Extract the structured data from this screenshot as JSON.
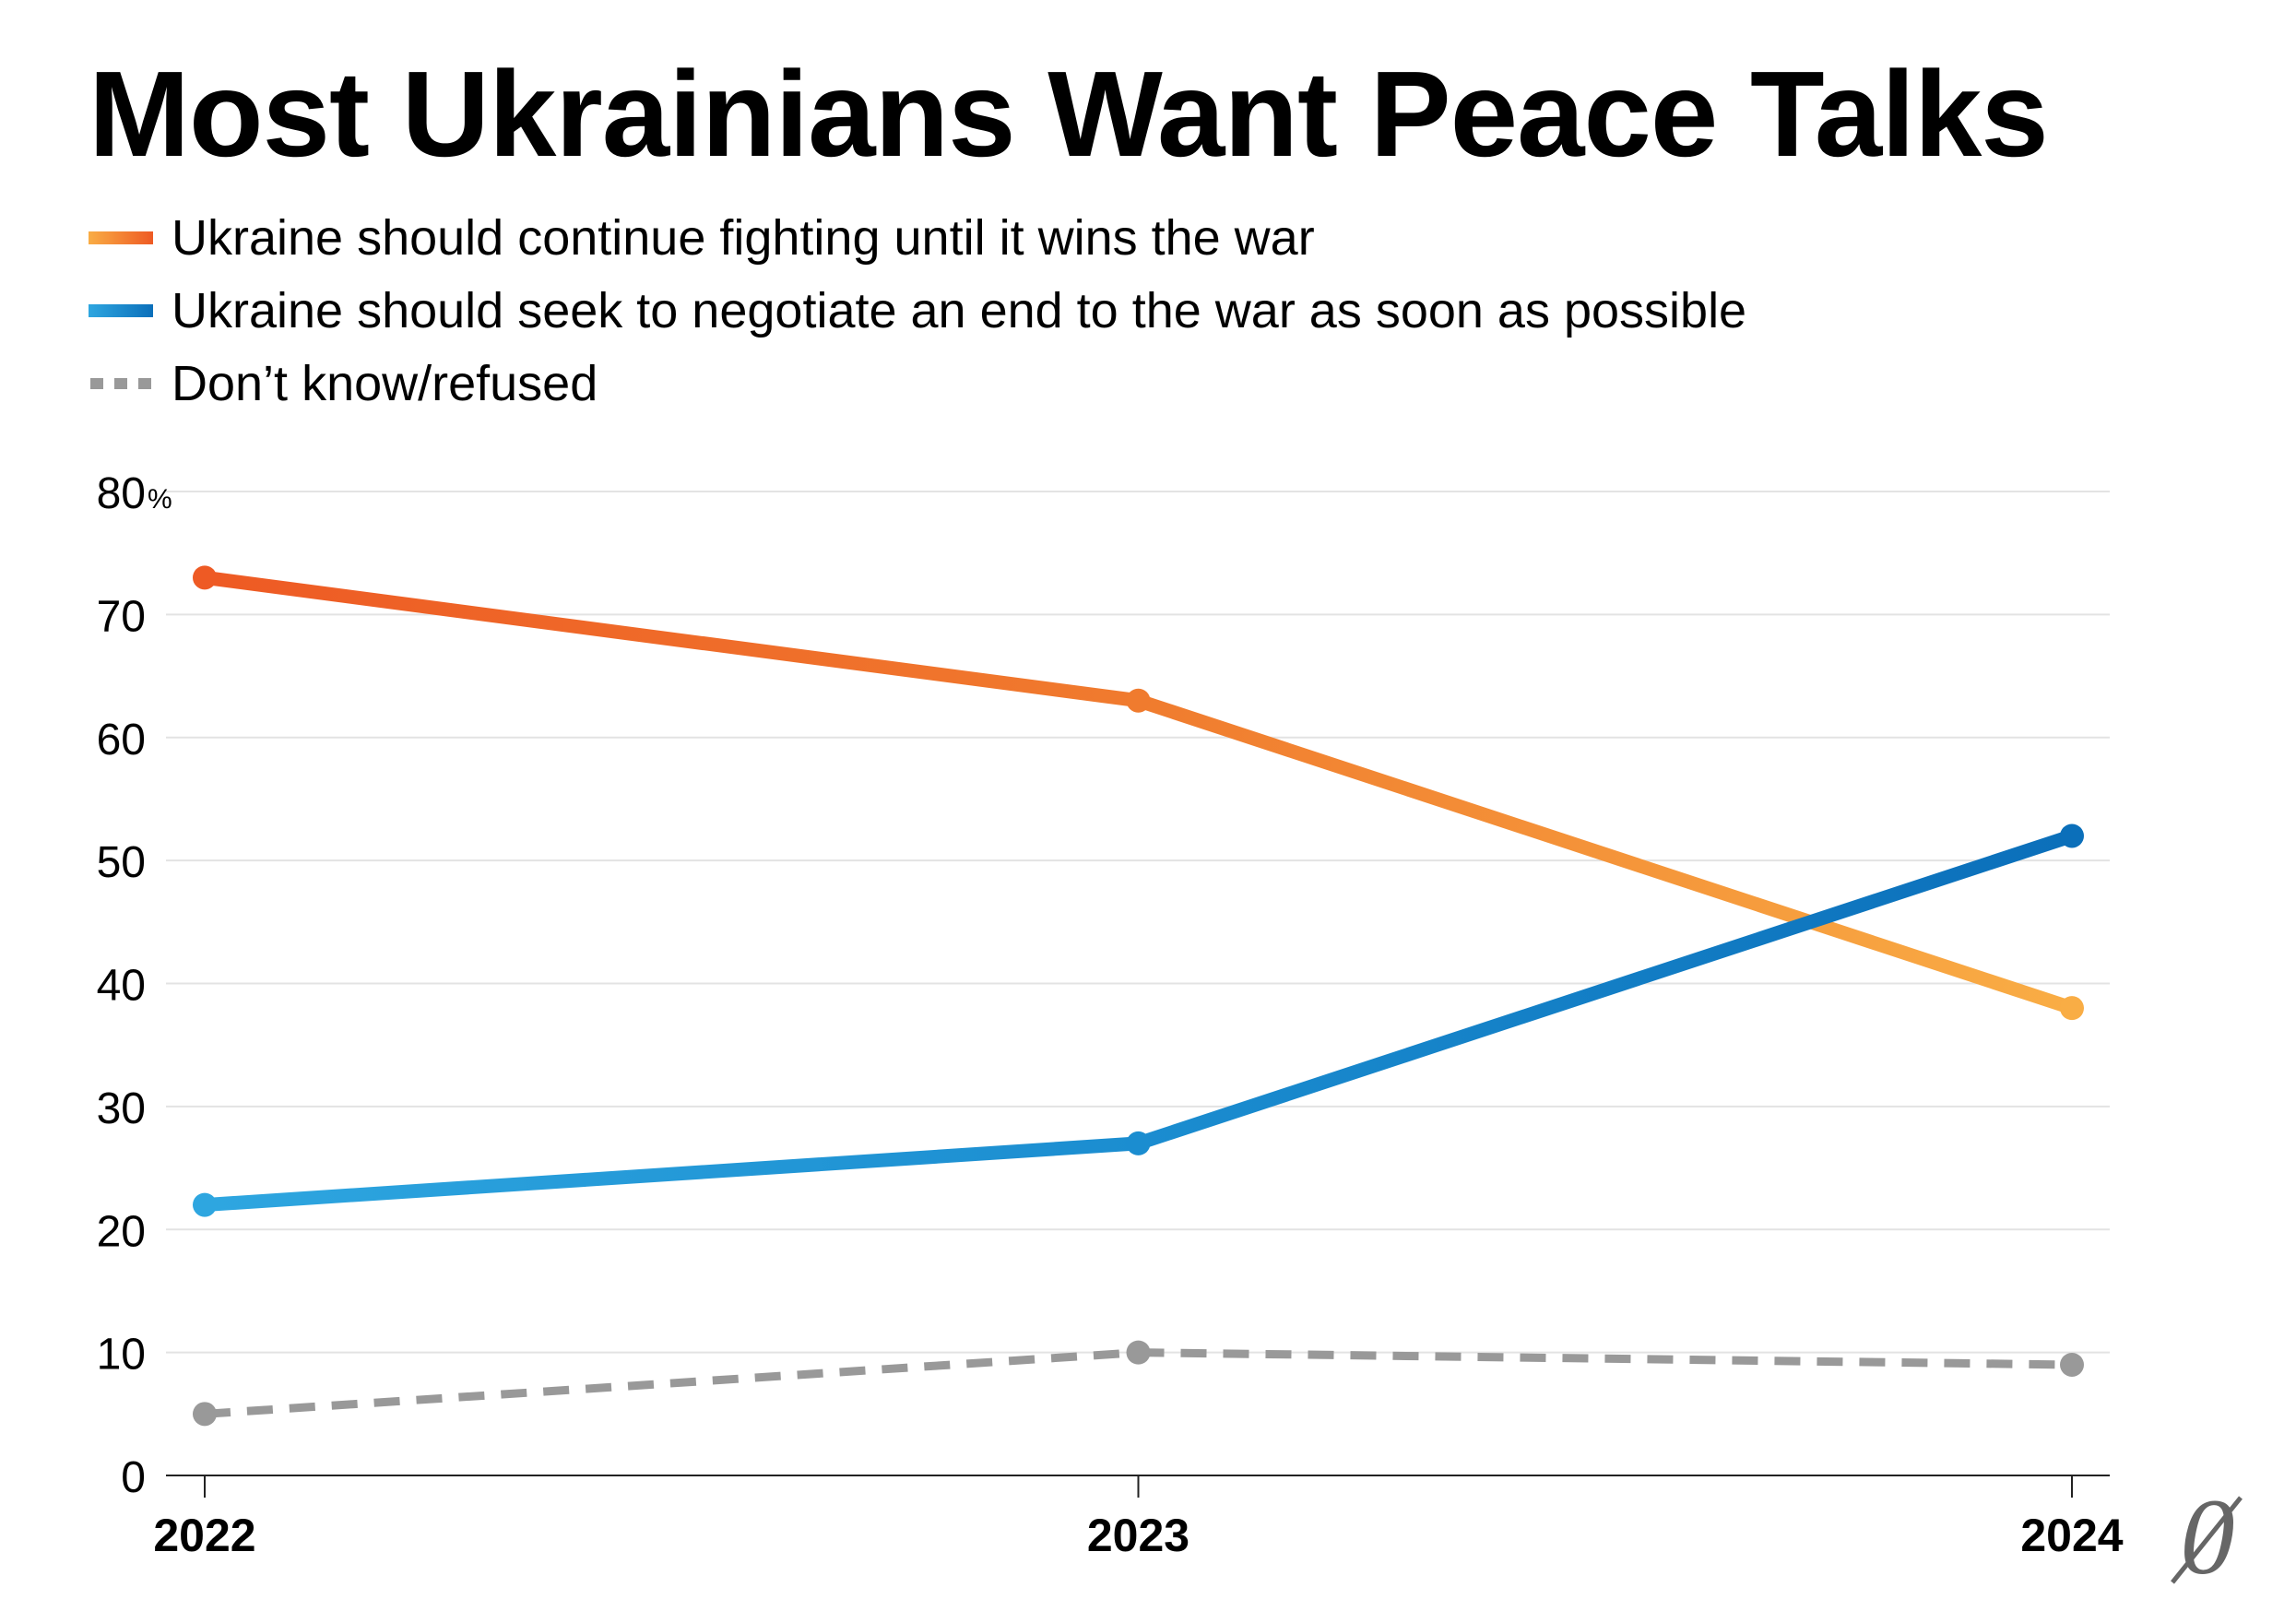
{
  "chart_data": {
    "type": "line",
    "title": "Most Ukrainians Want Peace Talks",
    "x": [
      "2022",
      "2023",
      "2024"
    ],
    "ylim": [
      0,
      80
    ],
    "y_ticks": [
      "80",
      "70",
      "60",
      "50",
      "40",
      "30",
      "20",
      "10",
      "0"
    ],
    "y_tick_unit": "%",
    "grid": true,
    "legend_position": "top-left",
    "series": [
      {
        "name": "Ukraine should continue fighting until it wins the war",
        "values": [
          73,
          63,
          38
        ],
        "colors": [
          "#ee5a24",
          "#f07b2e",
          "#f9ad45"
        ],
        "style": "solid"
      },
      {
        "name": "Ukraine should seek to negotiate an end to the war as soon as possible",
        "values": [
          22,
          27,
          52
        ],
        "colors": [
          "#2ea6e0",
          "#1b8dd0",
          "#0b6fba"
        ],
        "style": "solid"
      },
      {
        "name": "Don’t know/refused",
        "values": [
          5,
          10,
          9
        ],
        "colors": [
          "#999999",
          "#999999",
          "#999999"
        ],
        "style": "dotted"
      }
    ]
  },
  "gridline_color": "#e3e3e3",
  "axis_color": "#222222",
  "logo": {
    "icon": "publication-monogram-icon",
    "glyph": "0"
  }
}
